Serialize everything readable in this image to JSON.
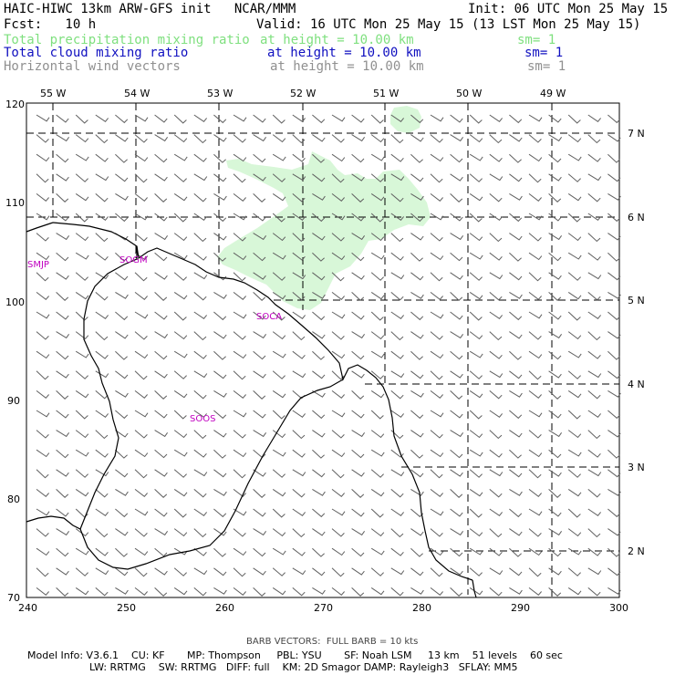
{
  "header": {
    "title": "HAIC-HIWC 13km ARW-GFS init   NCAR/MMM",
    "init": "Init: 06 UTC Mon 25 May 15",
    "fcst": "Fcst:   10 h",
    "valid": "Valid: 16 UTC Mon 25 May 15 (13 LST Mon 25 May 15)",
    "fields": [
      {
        "name": "Total precipitation mixing ratio",
        "height": "at height = 10.00 km",
        "sm": "sm= 1",
        "color": "#7fe07f"
      },
      {
        "name": "Total cloud mixing ratio",
        "height": "at height = 10.00 km",
        "sm": "sm= 1",
        "color": "#1010c0"
      },
      {
        "name": "Horizontal wind vectors",
        "height": "at height = 10.00 km",
        "sm": "sm= 1",
        "color": "#909090"
      }
    ]
  },
  "map": {
    "longitude_labels": [
      "55 W",
      "54 W",
      "53 W",
      "52 W",
      "51 W",
      "50 W",
      "49 W"
    ],
    "latitude_labels": [
      "7 N",
      "6 N",
      "5 N",
      "4 N",
      "3 N",
      "2 N"
    ],
    "x_ticks": [
      "240",
      "250",
      "260",
      "270",
      "280",
      "290",
      "300"
    ],
    "y_ticks": [
      "70",
      "80",
      "90",
      "100",
      "110",
      "120"
    ],
    "stations": [
      "SMJP",
      "SOGM",
      "SOCA",
      "SOOS"
    ],
    "precip_color": "#d8f7d8",
    "coast_color": "#000000",
    "barb_color": "#606060"
  },
  "footer": {
    "barb_note": "BARB VECTORS:  FULL BARB = 10 kts",
    "model_line1": "Model Info: V3.6.1    CU: KF       MP: Thompson     PBL: YSU       SF: Noah LSM     13 km    51 levels    60 sec",
    "model_line2": "LW: RRTMG    SW: RRTMG   DIFF: full    KM: 2D Smagor DAMP: Rayleigh3   SFLAY: MM5"
  }
}
